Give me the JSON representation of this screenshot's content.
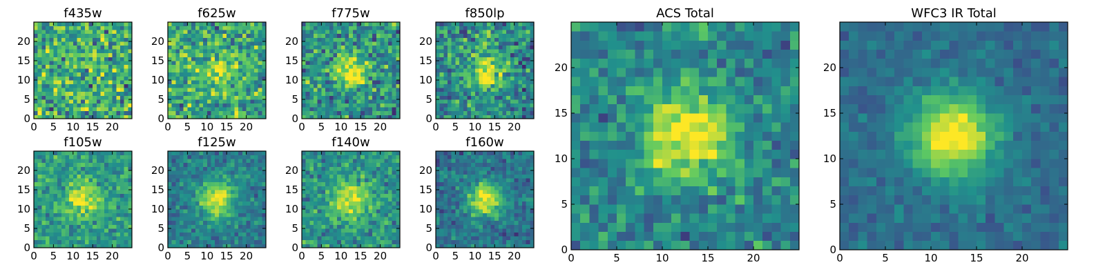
{
  "figure": {
    "colormap": "viridis",
    "colormap_stops": [
      "#440154",
      "#3b528b",
      "#21918c",
      "#5ec962",
      "#fde725"
    ],
    "frame_color": "#000000",
    "background": "#ffffff"
  },
  "chart_data": [
    {
      "type": "heatmap",
      "title": "f435w",
      "grid_size": 25,
      "xlim": [
        0,
        25
      ],
      "ylim": [
        0,
        25
      ],
      "x_ticks": [
        0,
        5,
        10,
        15,
        20
      ],
      "y_ticks": [
        0,
        5,
        10,
        15,
        20
      ],
      "source_center": [
        12,
        12
      ],
      "source_peak": 0.0,
      "background_level": 0.62,
      "noise": 0.3,
      "grid": false
    },
    {
      "type": "heatmap",
      "title": "f625w",
      "grid_size": 25,
      "xlim": [
        0,
        25
      ],
      "ylim": [
        0,
        25
      ],
      "x_ticks": [
        0,
        5,
        10,
        15,
        20
      ],
      "y_ticks": [
        0,
        5,
        10,
        15,
        20
      ],
      "source_center": [
        12,
        12
      ],
      "source_peak": 0.25,
      "background_level": 0.6,
      "noise": 0.26,
      "grid": false
    },
    {
      "type": "heatmap",
      "title": "f775w",
      "grid_size": 25,
      "xlim": [
        0,
        25
      ],
      "ylim": [
        0,
        25
      ],
      "x_ticks": [
        0,
        5,
        10,
        15,
        20
      ],
      "y_ticks": [
        0,
        5,
        10,
        15,
        20
      ],
      "source_center": [
        12,
        12
      ],
      "source_peak": 0.45,
      "background_level": 0.5,
      "noise": 0.26,
      "grid": false
    },
    {
      "type": "heatmap",
      "title": "f850lp",
      "grid_size": 25,
      "xlim": [
        0,
        25
      ],
      "ylim": [
        0,
        25
      ],
      "x_ticks": [
        0,
        5,
        10,
        15,
        20
      ],
      "y_ticks": [
        0,
        5,
        10,
        15,
        20
      ],
      "source_center": [
        12,
        12
      ],
      "source_peak": 0.5,
      "background_level": 0.48,
      "noise": 0.26,
      "grid": false
    },
    {
      "type": "heatmap",
      "title": "f105w",
      "grid_size": 25,
      "xlim": [
        0,
        25
      ],
      "ylim": [
        0,
        25
      ],
      "x_ticks": [
        0,
        5,
        10,
        15,
        20
      ],
      "y_ticks": [
        0,
        5,
        10,
        15,
        20
      ],
      "source_center": [
        12,
        12
      ],
      "source_peak": 0.4,
      "background_level": 0.55,
      "noise": 0.18,
      "grid": false
    },
    {
      "type": "heatmap",
      "title": "f125w",
      "grid_size": 25,
      "xlim": [
        0,
        25
      ],
      "ylim": [
        0,
        25
      ],
      "x_ticks": [
        0,
        5,
        10,
        15,
        20
      ],
      "y_ticks": [
        0,
        5,
        10,
        15,
        20
      ],
      "source_center": [
        12,
        12
      ],
      "source_peak": 0.55,
      "background_level": 0.42,
      "noise": 0.14,
      "grid": false
    },
    {
      "type": "heatmap",
      "title": "f140w",
      "grid_size": 25,
      "xlim": [
        0,
        25
      ],
      "ylim": [
        0,
        25
      ],
      "x_ticks": [
        0,
        5,
        10,
        15,
        20
      ],
      "y_ticks": [
        0,
        5,
        10,
        15,
        20
      ],
      "source_center": [
        12,
        12
      ],
      "source_peak": 0.45,
      "background_level": 0.52,
      "noise": 0.18,
      "grid": false
    },
    {
      "type": "heatmap",
      "title": "f160w",
      "grid_size": 25,
      "xlim": [
        0,
        25
      ],
      "ylim": [
        0,
        25
      ],
      "x_ticks": [
        0,
        5,
        10,
        15,
        20
      ],
      "y_ticks": [
        0,
        5,
        10,
        15,
        20
      ],
      "source_center": [
        12,
        12
      ],
      "source_peak": 0.6,
      "background_level": 0.38,
      "noise": 0.14,
      "grid": false
    },
    {
      "type": "heatmap",
      "title": "ACS Total",
      "grid_size": 25,
      "xlim": [
        0,
        25
      ],
      "ylim": [
        0,
        25
      ],
      "x_ticks": [
        0,
        5,
        10,
        15,
        20
      ],
      "y_ticks": [
        0,
        5,
        10,
        15,
        20
      ],
      "source_center": [
        12,
        12
      ],
      "source_peak": 0.6,
      "background_level": 0.45,
      "noise": 0.18,
      "grid": false
    },
    {
      "type": "heatmap",
      "title": "WFC3 IR Total",
      "grid_size": 25,
      "xlim": [
        0,
        25
      ],
      "ylim": [
        0,
        25
      ],
      "x_ticks": [
        0,
        5,
        10,
        15,
        20
      ],
      "y_ticks": [
        0,
        5,
        10,
        15,
        20
      ],
      "source_center": [
        12,
        12
      ],
      "source_peak": 0.68,
      "background_level": 0.36,
      "noise": 0.09,
      "grid": false
    }
  ]
}
